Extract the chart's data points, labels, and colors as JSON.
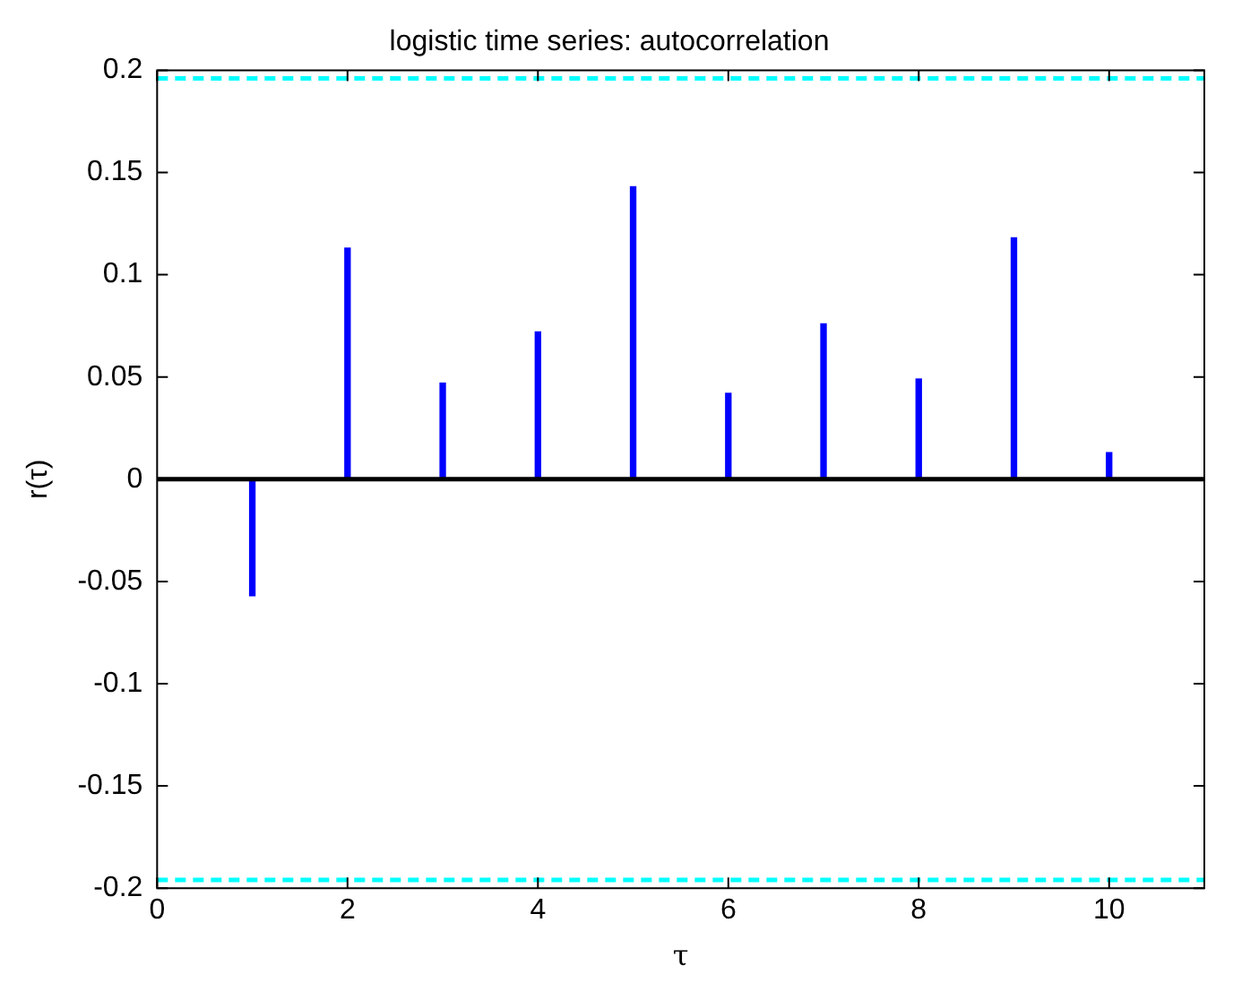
{
  "chart_data": {
    "type": "bar",
    "title": "logistic time series: autocorrelation",
    "xlabel": "τ",
    "ylabel": "r(τ)",
    "x": [
      1,
      2,
      3,
      4,
      5,
      6,
      7,
      8,
      9,
      10
    ],
    "values": [
      -0.057,
      0.113,
      0.047,
      0.072,
      0.143,
      0.042,
      0.076,
      0.049,
      0.118,
      0.013
    ],
    "color": "#0000ff",
    "xlim": [
      0,
      11
    ],
    "xticks": [
      0,
      2,
      4,
      6,
      8,
      10
    ],
    "ylim": [
      -0.2,
      0.2
    ],
    "yticks": [
      -0.2,
      -0.15,
      -0.1,
      -0.05,
      0,
      0.05,
      0.1,
      0.15,
      0.2
    ],
    "ref_lines": [
      {
        "axis": "y",
        "value": 0.196,
        "color": "#00ffff",
        "line_style": "dashed"
      },
      {
        "axis": "y",
        "value": -0.196,
        "color": "#00ffff",
        "line_style": "dashed"
      },
      {
        "axis": "y",
        "value": 0,
        "color": "#000000",
        "line_style": "solid"
      }
    ],
    "grid": false,
    "legend": false
  }
}
